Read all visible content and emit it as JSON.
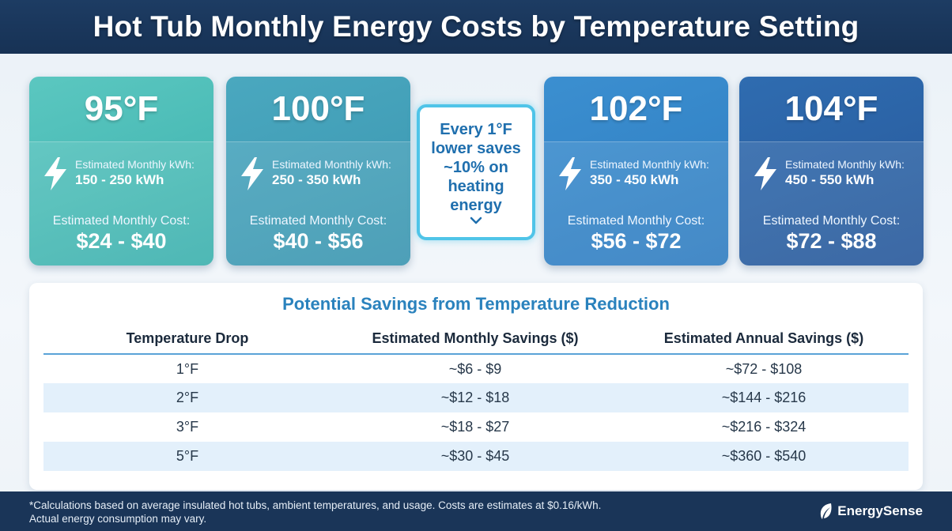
{
  "header": {
    "title": "Hot Tub Monthly Energy Costs by Temperature Setting"
  },
  "cards": [
    {
      "temp": "95°F",
      "kwh_label": "Estimated Monthly kWh:",
      "kwh_value": "150 - 250 kWh",
      "cost_label": "Estimated Monthly Cost:",
      "cost_value": "$24 - $40",
      "icon": "lightning-bolt-icon"
    },
    {
      "temp": "100°F",
      "kwh_label": "Estimated Monthly kWh:",
      "kwh_value": "250 - 350 kWh",
      "cost_label": "Estimated Monthly Cost:",
      "cost_value": "$40 - $56",
      "icon": "lightning-bolt-icon"
    },
    {
      "temp": "102°F",
      "kwh_label": "Estimated Monthly kWh:",
      "kwh_value": "350 - 450 kWh",
      "cost_label": "Estimated Monthly Cost:",
      "cost_value": "$56 - $72",
      "icon": "lightning-bolt-icon"
    },
    {
      "temp": "104°F",
      "kwh_label": "Estimated Monthly kWh:",
      "kwh_value": "450 - 550 kWh",
      "cost_label": "Estimated Monthly Cost:",
      "cost_value": "$72 - $88",
      "icon": "lightning-bolt-icon"
    }
  ],
  "callout": {
    "text": "Every 1°F lower saves ~10% on heating energy",
    "icon": "chevron-down-icon"
  },
  "savings": {
    "title": "Potential Savings from Temperature Reduction",
    "headers": [
      "Temperature Drop",
      "Estimated Monthly Savings ($)",
      "Estimated Annual Savings ($)"
    ],
    "rows": [
      [
        "1°F",
        "~$6 - $9",
        "~$72 - $108"
      ],
      [
        "2°F",
        "~$12 - $18",
        "~$144 - $216"
      ],
      [
        "3°F",
        "~$18 - $27",
        "~$216 - $324"
      ],
      [
        "5°F",
        "~$30 - $45",
        "~$360 - $540"
      ]
    ]
  },
  "footer": {
    "note_line1": "*Calculations based on average insulated hot tubs, ambient temperatures, and usage. Costs are estimates at $0.16/kWh.",
    "note_line2": "Actual energy consumption may vary.",
    "brand": "EnergySense",
    "brand_icon": "leaf-icon"
  },
  "colors": {
    "header_bg": "#1d3c63",
    "card_95": "#4dbdb8",
    "card_100": "#42a0b8",
    "card_102": "#3586c8",
    "card_104": "#2b62a5",
    "callout_border": "#4fc4e8",
    "accent_title": "#2a82bd",
    "row_alt": "#e3f0fb",
    "footer_bg": "#1a3558"
  }
}
